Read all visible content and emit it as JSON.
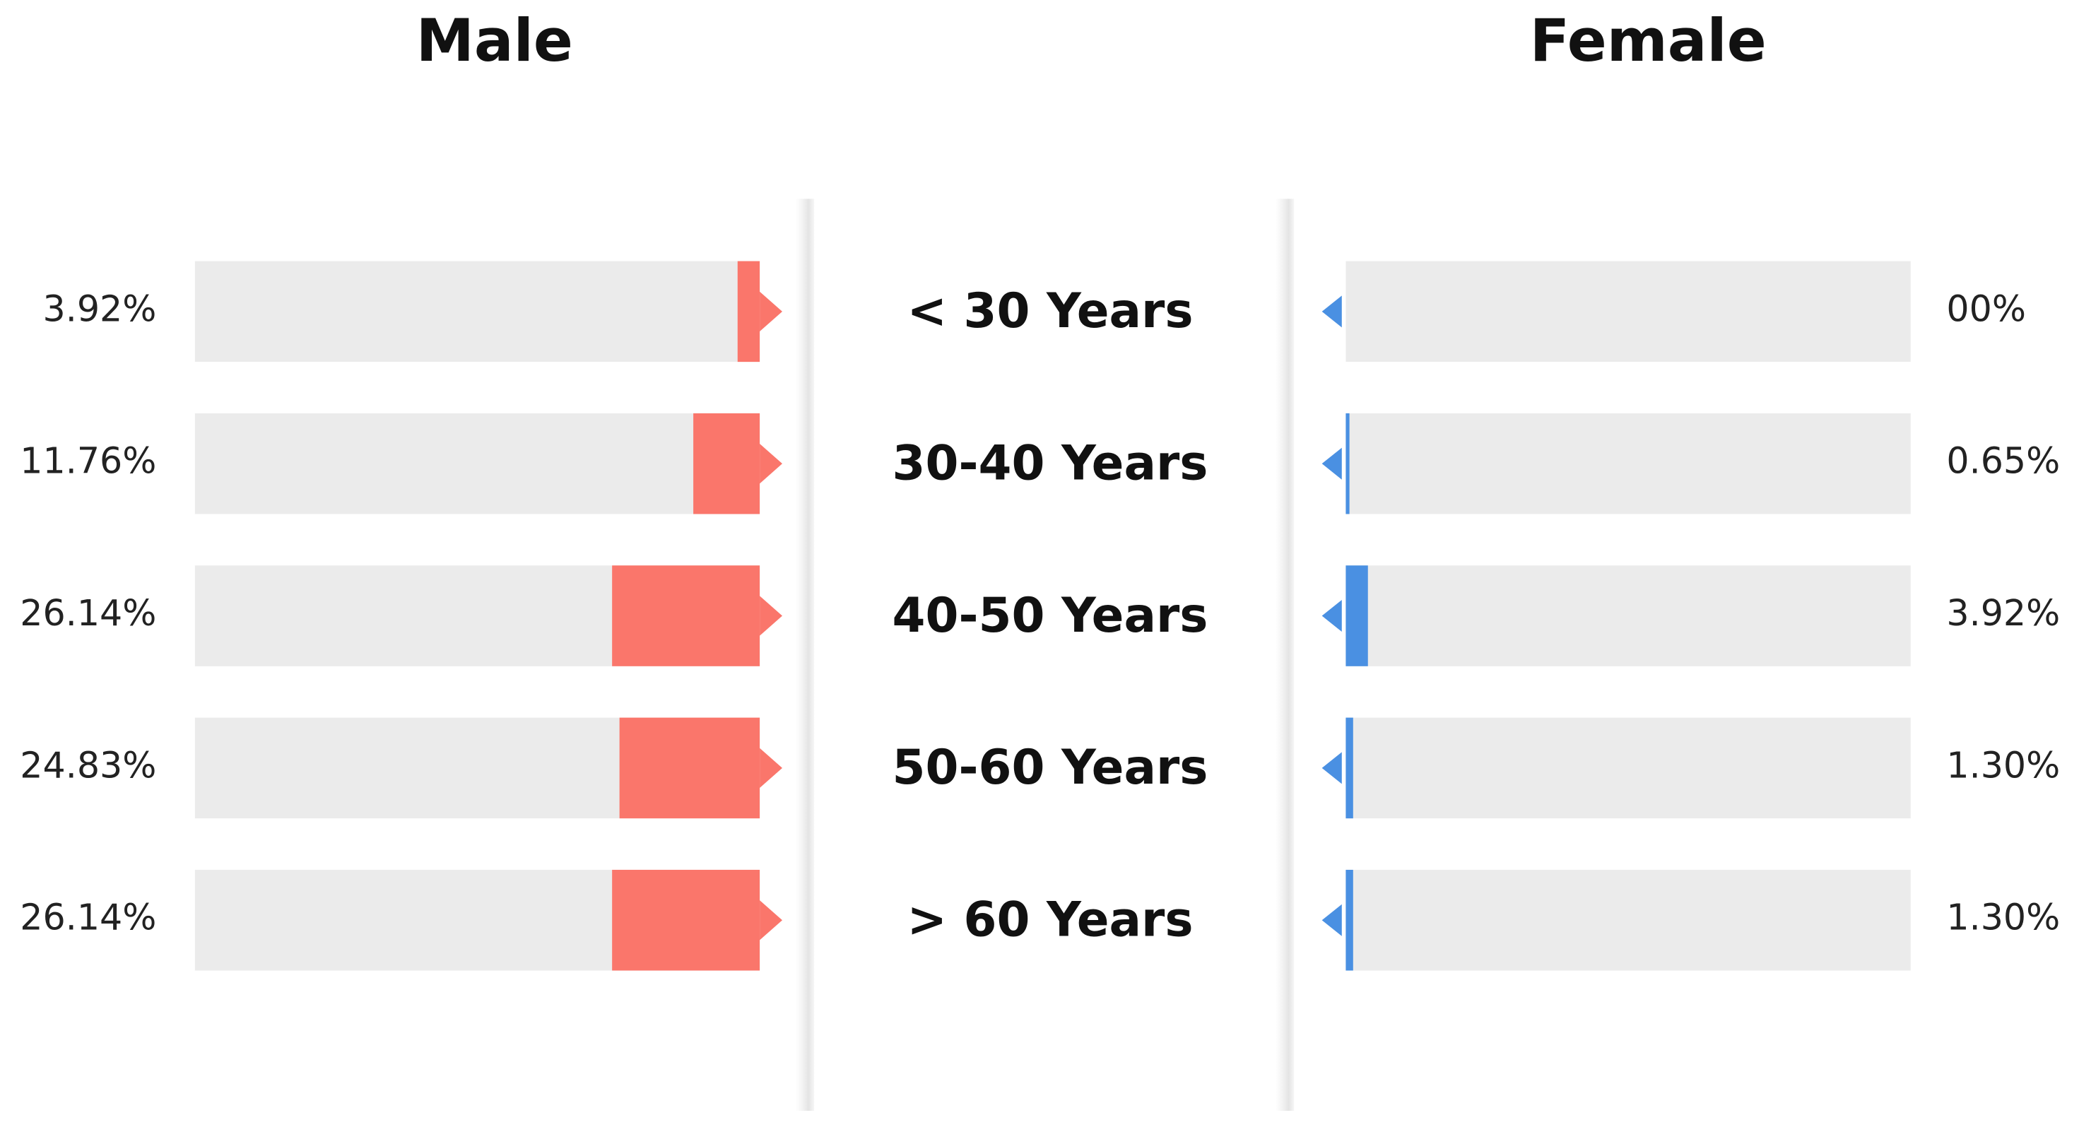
{
  "chart_data": {
    "type": "butterfly",
    "categories": [
      "< 30 Years",
      "30-40 Years",
      "40-50 Years",
      "50-60 Years",
      "> 60 Years"
    ],
    "xlim": [
      0,
      100
    ],
    "series": [
      {
        "name": "Male",
        "color": "#fa766b",
        "values": [
          3.92,
          11.76,
          26.14,
          24.83,
          26.14
        ],
        "value_labels": [
          "3.92%",
          "11.76%",
          "26.14%",
          "24.83%",
          "26.14%"
        ]
      },
      {
        "name": "Female",
        "color": "#4a90e2",
        "values": [
          0,
          0.65,
          3.92,
          1.3,
          1.3
        ],
        "value_labels": [
          "00%",
          "0.65%",
          "3.92%",
          "1.30%",
          "1.30%"
        ]
      }
    ]
  }
}
